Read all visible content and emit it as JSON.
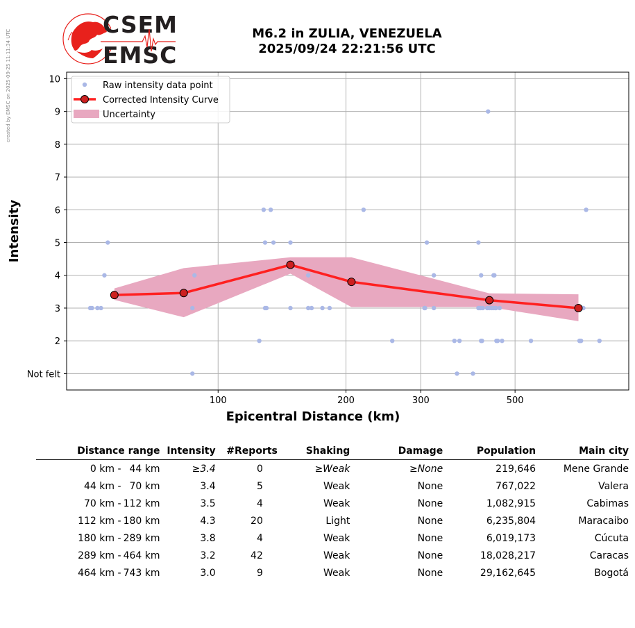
{
  "side_note": "created by EMSC on 2025-09-25 11:11:34 UTC",
  "logo": {
    "line1": "CSEM",
    "line2": "EMSC"
  },
  "header": {
    "title_line1": "M6.2 in ZULIA, VENEZUELA",
    "title_line2": "2025/09/24 22:21:56 UTC"
  },
  "chart_data": {
    "type": "scatter",
    "xlabel": "Epicentral Distance (km)",
    "ylabel": "Intensity",
    "x_scale": "log",
    "xlim": [
      44,
      926
    ],
    "ylim": [
      0.5,
      10.2
    ],
    "x_ticks": [
      100,
      200,
      300,
      500
    ],
    "y_ticks": [
      {
        "v": 1,
        "label": "Not felt"
      },
      {
        "v": 2,
        "label": "2"
      },
      {
        "v": 3,
        "label": "3"
      },
      {
        "v": 4,
        "label": "4"
      },
      {
        "v": 5,
        "label": "5"
      },
      {
        "v": 6,
        "label": "6"
      },
      {
        "v": 7,
        "label": "7"
      },
      {
        "v": 8,
        "label": "8"
      },
      {
        "v": 9,
        "label": "9"
      },
      {
        "v": 10,
        "label": "10"
      }
    ],
    "grid": true,
    "legend_position": "top-left",
    "legend": [
      "Raw intensity data point",
      "Corrected Intensity Curve",
      "Uncertainty"
    ],
    "colors": {
      "raw": "#aab8e6",
      "curve": "#ff2020",
      "marker": "#cc2020",
      "uncertainty": "#e8a8c0"
    },
    "raw_points": [
      [
        50,
        3
      ],
      [
        50.5,
        3
      ],
      [
        52,
        3
      ],
      [
        53,
        3
      ],
      [
        54,
        4
      ],
      [
        55,
        5
      ],
      [
        88,
        4
      ],
      [
        87,
        3
      ],
      [
        87,
        1
      ],
      [
        125,
        2
      ],
      [
        128,
        6
      ],
      [
        129,
        5
      ],
      [
        129,
        3
      ],
      [
        130,
        3
      ],
      [
        133,
        6
      ],
      [
        135,
        5
      ],
      [
        148,
        5
      ],
      [
        148,
        3
      ],
      [
        163,
        4
      ],
      [
        163,
        3
      ],
      [
        166,
        3
      ],
      [
        176,
        3
      ],
      [
        183,
        3
      ],
      [
        220,
        6
      ],
      [
        257,
        2
      ],
      [
        306,
        3
      ],
      [
        307,
        3
      ],
      [
        310,
        5
      ],
      [
        322,
        4
      ],
      [
        322,
        3
      ],
      [
        360,
        2
      ],
      [
        365,
        1
      ],
      [
        370,
        2
      ],
      [
        398,
        1
      ],
      [
        410,
        5
      ],
      [
        410,
        3
      ],
      [
        413,
        3
      ],
      [
        415,
        3
      ],
      [
        416,
        4
      ],
      [
        416,
        2
      ],
      [
        418,
        2
      ],
      [
        420,
        3
      ],
      [
        430,
        3
      ],
      [
        432,
        9
      ],
      [
        435,
        3
      ],
      [
        440,
        3
      ],
      [
        444,
        3
      ],
      [
        445,
        4
      ],
      [
        447,
        4
      ],
      [
        449,
        3
      ],
      [
        451,
        3
      ],
      [
        452,
        2
      ],
      [
        455,
        2
      ],
      [
        460,
        3
      ],
      [
        466,
        2
      ],
      [
        545,
        2
      ],
      [
        709,
        2
      ],
      [
        711,
        2
      ],
      [
        715,
        2
      ],
      [
        720,
        3
      ],
      [
        724,
        3
      ],
      [
        735,
        6
      ],
      [
        790,
        2
      ]
    ],
    "curve": [
      [
        57,
        3.4
      ],
      [
        83,
        3.46
      ],
      [
        148,
        4.32
      ],
      [
        206,
        3.8
      ],
      [
        435,
        3.24
      ],
      [
        705,
        3.0
      ]
    ],
    "uncertainty_upper": [
      [
        57,
        3.6
      ],
      [
        83,
        4.22
      ],
      [
        148,
        4.55
      ],
      [
        206,
        4.55
      ],
      [
        435,
        3.45
      ],
      [
        705,
        3.42
      ]
    ],
    "uncertainty_lower": [
      [
        57,
        3.25
      ],
      [
        83,
        2.72
      ],
      [
        148,
        4.05
      ],
      [
        206,
        3.03
      ],
      [
        435,
        3.03
      ],
      [
        705,
        2.6
      ]
    ]
  },
  "table": {
    "headers": [
      "Distance range",
      "Intensity",
      "#Reports",
      "Shaking",
      "Damage",
      "Population",
      "Main city"
    ],
    "rows": [
      {
        "range_from": "0 km -",
        "range_to": "44 km",
        "intensity": "≥3.4",
        "reports": "0",
        "shaking": "≥Weak",
        "damage": "≥None",
        "population": "219,646",
        "city": "Mene Grande"
      },
      {
        "range_from": "44 km -",
        "range_to": "70 km",
        "intensity": "3.4",
        "reports": "5",
        "shaking": "Weak",
        "damage": "None",
        "population": "767,022",
        "city": "Valera"
      },
      {
        "range_from": "70 km -",
        "range_to": "112 km",
        "intensity": "3.5",
        "reports": "4",
        "shaking": "Weak",
        "damage": "None",
        "population": "1,082,915",
        "city": "Cabimas"
      },
      {
        "range_from": "112 km -",
        "range_to": "180 km",
        "intensity": "4.3",
        "reports": "20",
        "shaking": "Light",
        "damage": "None",
        "population": "6,235,804",
        "city": "Maracaibo"
      },
      {
        "range_from": "180 km -",
        "range_to": "289 km",
        "intensity": "3.8",
        "reports": "4",
        "shaking": "Weak",
        "damage": "None",
        "population": "6,019,173",
        "city": "Cúcuta"
      },
      {
        "range_from": "289 km -",
        "range_to": "464 km",
        "intensity": "3.2",
        "reports": "42",
        "shaking": "Weak",
        "damage": "None",
        "population": "18,028,217",
        "city": "Caracas"
      },
      {
        "range_from": "464 km -",
        "range_to": "743 km",
        "intensity": "3.0",
        "reports": "9",
        "shaking": "Weak",
        "damage": "None",
        "population": "29,162,645",
        "city": "Bogotá"
      }
    ]
  }
}
